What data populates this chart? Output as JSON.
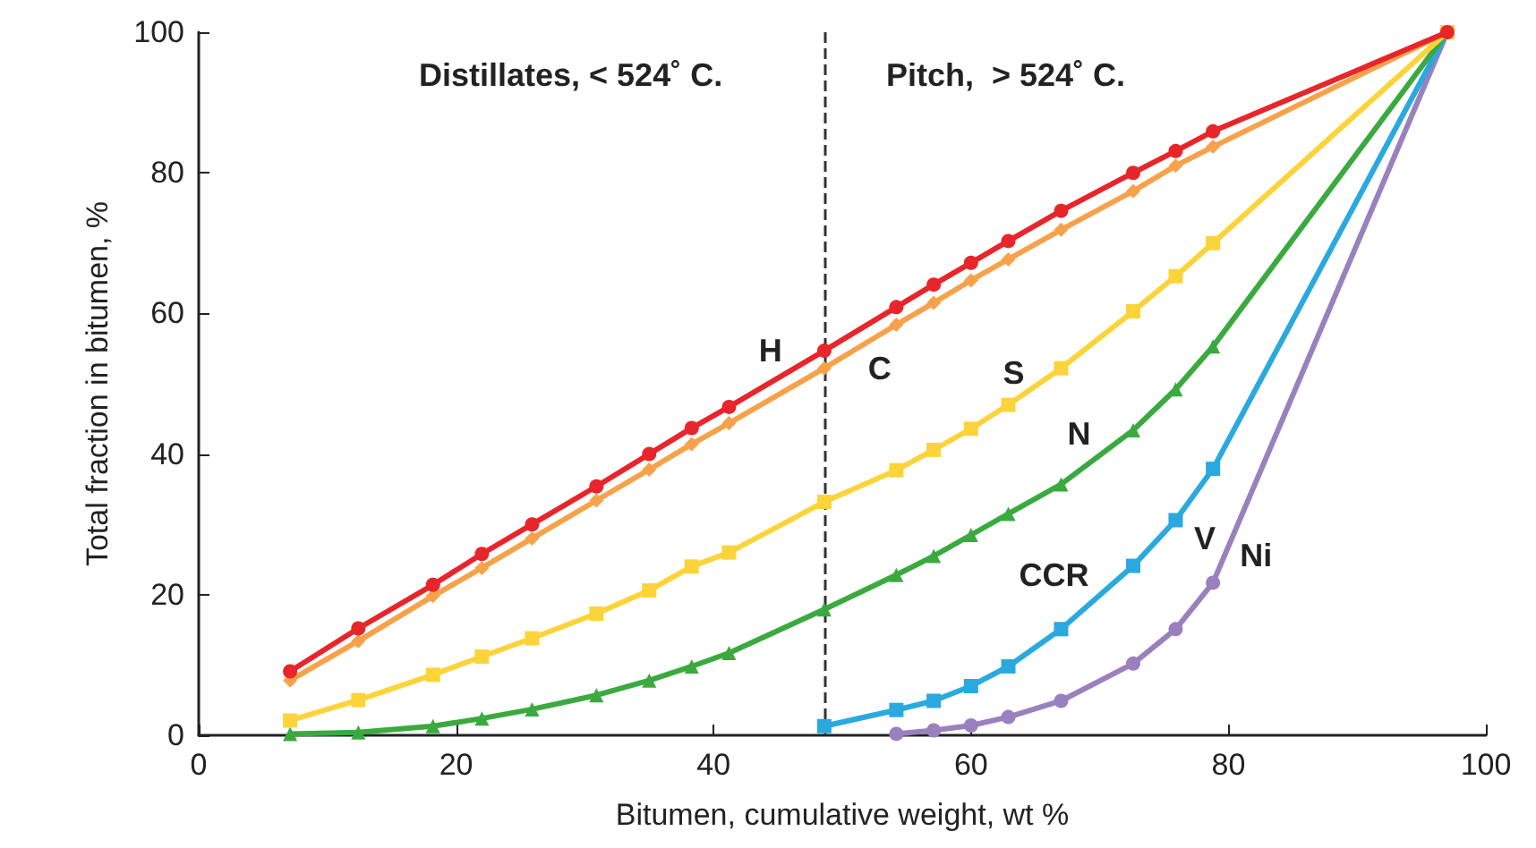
{
  "chart_data": {
    "type": "line",
    "xlabel": "Bitumen, cumulative weight, wt %",
    "ylabel": "Total fraction in bitumen, %",
    "xlim": [
      0,
      100
    ],
    "xticks": [
      0,
      20,
      40,
      60,
      80,
      100
    ],
    "ylim": [
      0,
      100
    ],
    "yticks": [
      0,
      20,
      40,
      60,
      80,
      100
    ],
    "grid": false,
    "legend": false,
    "line_style": "solid",
    "x": [
      7.1,
      12.4,
      18.2,
      22.0,
      25.9,
      30.9,
      35.0,
      38.3,
      41.2,
      48.6,
      54.2,
      57.1,
      60.0,
      62.9,
      67.0,
      72.6,
      75.9,
      78.8,
      97
    ],
    "series": [
      {
        "name": "H",
        "color": "#e8252a",
        "marker": "circle",
        "values": [
          9.1,
          15.2,
          21.4,
          25.8,
          30.0,
          35.4,
          40.0,
          43.7,
          46.7,
          54.7,
          60.9,
          64.1,
          67.2,
          70.3,
          74.6,
          80.0,
          83.1,
          85.9,
          100
        ]
      },
      {
        "name": "C",
        "color": "#f7a24a",
        "marker": "diamond",
        "values": [
          7.8,
          13.4,
          19.8,
          23.8,
          28.0,
          33.4,
          37.8,
          41.4,
          44.4,
          52.2,
          58.4,
          61.5,
          64.7,
          67.7,
          71.9,
          77.4,
          81.0,
          83.7,
          100
        ]
      },
      {
        "name": "S",
        "color": "#fcd43a",
        "marker": "square",
        "values": [
          2.1,
          5.0,
          8.6,
          11.2,
          13.8,
          17.3,
          20.6,
          24.0,
          26.0,
          33.2,
          37.7,
          40.6,
          43.6,
          47.0,
          52.2,
          60.3,
          65.3,
          70.0,
          100
        ]
      },
      {
        "name": "N",
        "color": "#3aaa3f",
        "marker": "triangle",
        "values": [
          0.2,
          0.4,
          1.3,
          2.4,
          3.7,
          5.7,
          7.8,
          9.8,
          11.7,
          17.9,
          22.8,
          25.5,
          28.5,
          31.5,
          35.7,
          43.4,
          49.2,
          55.3,
          100
        ]
      },
      {
        "name": "CCR",
        "color": "#29a9e0",
        "marker": "square",
        "values": [
          null,
          null,
          null,
          null,
          null,
          null,
          null,
          null,
          null,
          1.3,
          3.6,
          4.9,
          7.0,
          9.8,
          15.1,
          24.1,
          30.6,
          37.9,
          100
        ]
      },
      {
        "name": "Ni",
        "color": "#9a80bd",
        "marker": "circle",
        "values": [
          null,
          null,
          null,
          null,
          null,
          null,
          null,
          null,
          null,
          null,
          0.2,
          0.7,
          1.4,
          2.6,
          4.9,
          10.2,
          15.1,
          21.7,
          100
        ]
      }
    ],
    "ref_lines": [
      {
        "axis": "x",
        "value": 48.6,
        "color": "#333333",
        "line_style": "dashed"
      }
    ],
    "annotations": [
      "Distillates, < 524˚ C.",
      "Pitch,  > 524˚ C.",
      "V"
    ]
  }
}
